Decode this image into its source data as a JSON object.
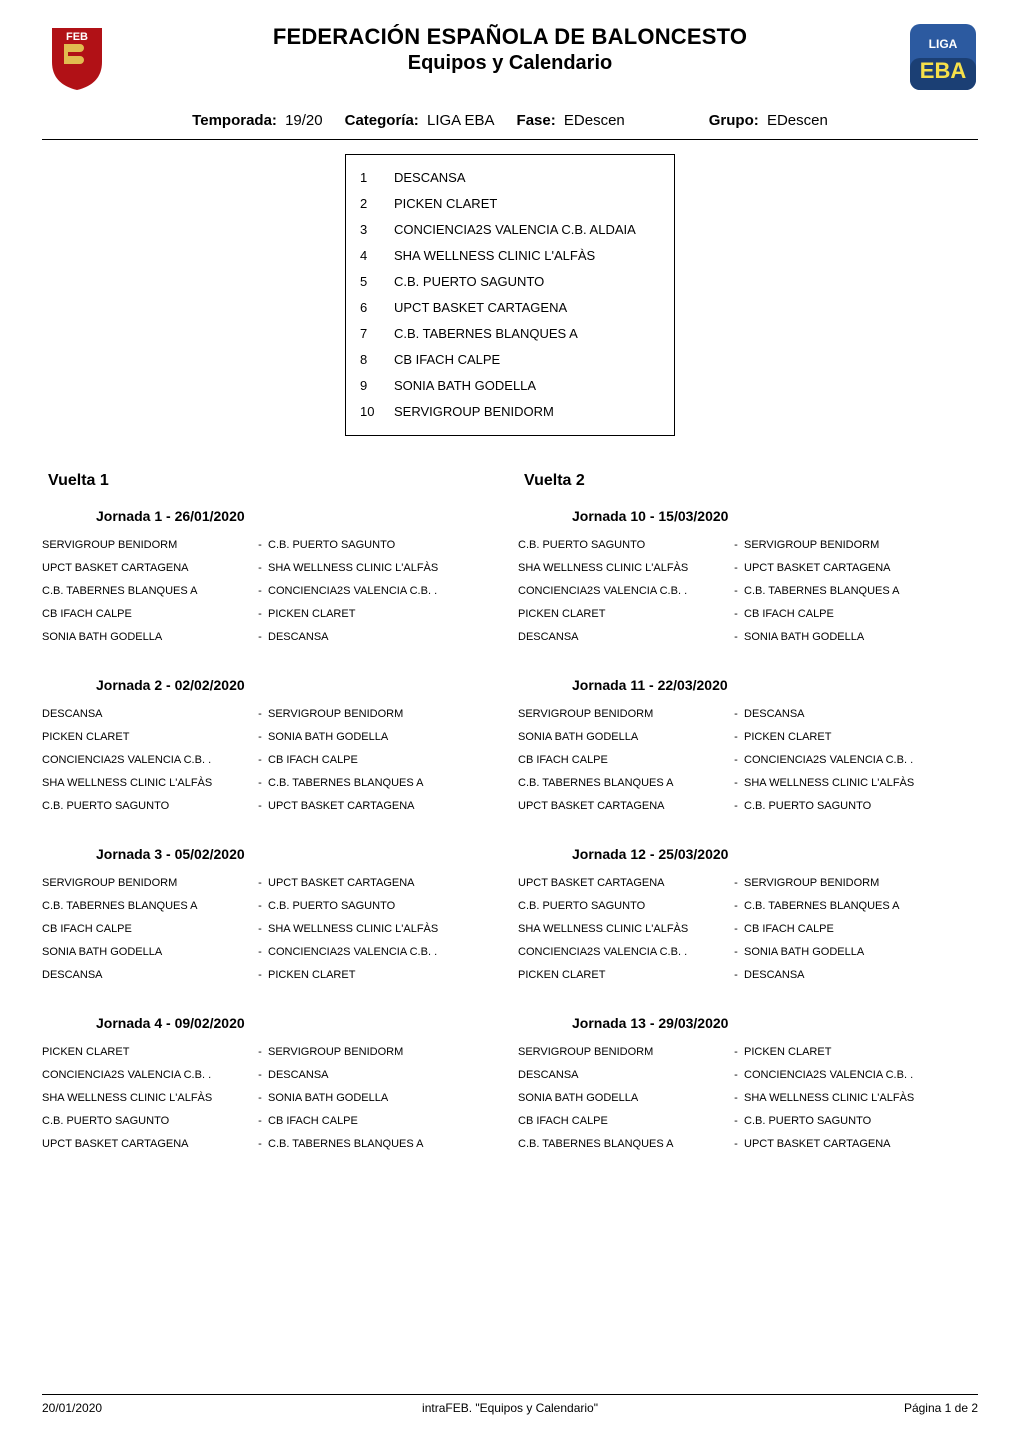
{
  "colors": {
    "text": "#000000",
    "background": "#ffffff",
    "rule": "#000000",
    "feb_red": "#b11116",
    "feb_accent": "#e7cf57",
    "eba_blue1": "#2c5aa0",
    "eba_blue2": "#1b3f74",
    "eba_text": "#f5e04a"
  },
  "typography": {
    "title_main_fontsize": 22,
    "title_sub_fontsize": 20,
    "meta_fontsize": 15,
    "vuelta_fontsize": 16,
    "jornada_fontsize": 14,
    "body_fontsize": 11,
    "footer_fontsize": 12,
    "team_fontsize": 13,
    "font_family": "Arial"
  },
  "header": {
    "title_main": "FEDERACIÓN ESPAÑOLA DE BALONCESTO",
    "title_sub": "Equipos y Calendario",
    "logo_left_label": "FEB shield logo",
    "logo_right_label": "Liga EBA logo",
    "logo_left_text": "FEB",
    "logo_right_line1": "LIGA",
    "logo_right_line2": "EBA"
  },
  "meta": {
    "temporada_label": "Temporada:",
    "temporada_value": "19/20",
    "categoria_label": "Categoría:",
    "categoria_value": "LIGA EBA",
    "fase_label": "Fase:",
    "fase_value": "EDescen",
    "grupo_label": "Grupo:",
    "grupo_value": "EDescen"
  },
  "teams": [
    {
      "num": "1",
      "name": "DESCANSA"
    },
    {
      "num": "2",
      "name": "PICKEN CLARET"
    },
    {
      "num": "3",
      "name": "CONCIENCIA2S VALENCIA C.B. ALDAIA"
    },
    {
      "num": "4",
      "name": "SHA WELLNESS CLINIC L'ALFÀS"
    },
    {
      "num": "5",
      "name": "C.B. PUERTO SAGUNTO"
    },
    {
      "num": "6",
      "name": "UPCT BASKET CARTAGENA"
    },
    {
      "num": "7",
      "name": "C.B. TABERNES BLANQUES A"
    },
    {
      "num": "8",
      "name": "CB IFACH CALPE"
    },
    {
      "num": "9",
      "name": "SONIA BATH GODELLA"
    },
    {
      "num": "10",
      "name": "SERVIGROUP BENIDORM"
    }
  ],
  "rounds": {
    "left": {
      "title": "Vuelta  1",
      "jornadas": [
        {
          "title": "Jornada  1   - 26/01/2020",
          "matches": [
            {
              "home": "SERVIGROUP BENIDORM",
              "away": "C.B. PUERTO SAGUNTO"
            },
            {
              "home": "UPCT BASKET CARTAGENA",
              "away": "SHA WELLNESS CLINIC L'ALFÀS"
            },
            {
              "home": "C.B. TABERNES BLANQUES A",
              "away": "CONCIENCIA2S VALENCIA C.B. ."
            },
            {
              "home": "CB IFACH CALPE",
              "away": "PICKEN CLARET"
            },
            {
              "home": "SONIA BATH GODELLA",
              "away": "DESCANSA"
            }
          ]
        },
        {
          "title": "Jornada  2   - 02/02/2020",
          "matches": [
            {
              "home": "DESCANSA",
              "away": "SERVIGROUP BENIDORM"
            },
            {
              "home": "PICKEN CLARET",
              "away": "SONIA BATH GODELLA"
            },
            {
              "home": "CONCIENCIA2S VALENCIA C.B. .",
              "away": "CB IFACH CALPE"
            },
            {
              "home": "SHA WELLNESS CLINIC L'ALFÀS",
              "away": "C.B. TABERNES BLANQUES A"
            },
            {
              "home": "C.B. PUERTO SAGUNTO",
              "away": "UPCT BASKET CARTAGENA"
            }
          ]
        },
        {
          "title": "Jornada  3   - 05/02/2020",
          "matches": [
            {
              "home": "SERVIGROUP BENIDORM",
              "away": "UPCT BASKET CARTAGENA"
            },
            {
              "home": "C.B. TABERNES BLANQUES A",
              "away": "C.B. PUERTO SAGUNTO"
            },
            {
              "home": "CB IFACH CALPE",
              "away": "SHA WELLNESS CLINIC L'ALFÀS"
            },
            {
              "home": "SONIA BATH GODELLA",
              "away": "CONCIENCIA2S VALENCIA C.B. ."
            },
            {
              "home": "DESCANSA",
              "away": "PICKEN CLARET"
            }
          ]
        },
        {
          "title": "Jornada  4   - 09/02/2020",
          "matches": [
            {
              "home": "PICKEN CLARET",
              "away": "SERVIGROUP BENIDORM"
            },
            {
              "home": "CONCIENCIA2S VALENCIA C.B. .",
              "away": "DESCANSA"
            },
            {
              "home": "SHA WELLNESS CLINIC L'ALFÀS",
              "away": "SONIA BATH GODELLA"
            },
            {
              "home": "C.B. PUERTO SAGUNTO",
              "away": "CB IFACH CALPE"
            },
            {
              "home": "UPCT BASKET CARTAGENA",
              "away": "C.B. TABERNES BLANQUES A"
            }
          ]
        }
      ]
    },
    "right": {
      "title": "Vuelta  2",
      "jornadas": [
        {
          "title": "Jornada  10 - 15/03/2020",
          "matches": [
            {
              "home": "C.B. PUERTO SAGUNTO",
              "away": "SERVIGROUP BENIDORM"
            },
            {
              "home": "SHA WELLNESS CLINIC L'ALFÀS",
              "away": "UPCT BASKET CARTAGENA"
            },
            {
              "home": "CONCIENCIA2S VALENCIA C.B. .",
              "away": "C.B. TABERNES BLANQUES A"
            },
            {
              "home": "PICKEN CLARET",
              "away": "CB IFACH CALPE"
            },
            {
              "home": "DESCANSA",
              "away": "SONIA BATH GODELLA"
            }
          ]
        },
        {
          "title": "Jornada  11 - 22/03/2020",
          "matches": [
            {
              "home": "SERVIGROUP BENIDORM",
              "away": "DESCANSA"
            },
            {
              "home": "SONIA BATH GODELLA",
              "away": "PICKEN CLARET"
            },
            {
              "home": "CB IFACH CALPE",
              "away": "CONCIENCIA2S VALENCIA C.B. ."
            },
            {
              "home": "C.B. TABERNES BLANQUES A",
              "away": "SHA WELLNESS CLINIC L'ALFÀS"
            },
            {
              "home": "UPCT BASKET CARTAGENA",
              "away": "C.B. PUERTO SAGUNTO"
            }
          ]
        },
        {
          "title": "Jornada  12 - 25/03/2020",
          "matches": [
            {
              "home": "UPCT BASKET CARTAGENA",
              "away": "SERVIGROUP BENIDORM"
            },
            {
              "home": "C.B. PUERTO SAGUNTO",
              "away": "C.B. TABERNES BLANQUES A"
            },
            {
              "home": "SHA WELLNESS CLINIC L'ALFÀS",
              "away": "CB IFACH CALPE"
            },
            {
              "home": "CONCIENCIA2S VALENCIA C.B. .",
              "away": "SONIA BATH GODELLA"
            },
            {
              "home": "PICKEN CLARET",
              "away": "DESCANSA"
            }
          ]
        },
        {
          "title": "Jornada  13 - 29/03/2020",
          "matches": [
            {
              "home": "SERVIGROUP BENIDORM",
              "away": "PICKEN CLARET"
            },
            {
              "home": "DESCANSA",
              "away": "CONCIENCIA2S VALENCIA C.B. ."
            },
            {
              "home": "SONIA BATH GODELLA",
              "away": "SHA WELLNESS CLINIC L'ALFÀS"
            },
            {
              "home": "CB IFACH CALPE",
              "away": "C.B. PUERTO SAGUNTO"
            },
            {
              "home": "C.B. TABERNES BLANQUES A",
              "away": "UPCT BASKET CARTAGENA"
            }
          ]
        }
      ]
    }
  },
  "footer": {
    "left": "20/01/2020",
    "center": "intraFEB. \"Equipos y Calendario\"",
    "right": "Página   1   de   2"
  }
}
